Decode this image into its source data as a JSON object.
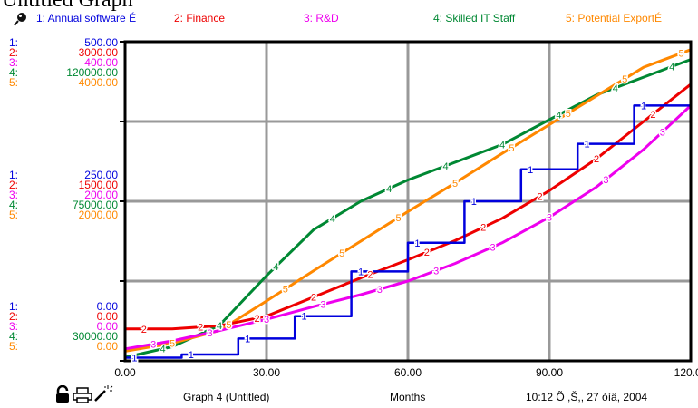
{
  "title_fragment": "Untitled Graph",
  "legend": [
    {
      "label": "1: Annual software É",
      "color": "#0000dd"
    },
    {
      "label": "2: Finance",
      "color": "#ee0000"
    },
    {
      "label": "3: R&D",
      "color": "#ee00ee"
    },
    {
      "label": "4: Skilled IT Staff",
      "color": "#008833"
    },
    {
      "label": "5: Potential ExportÉ",
      "color": "#ff8800"
    }
  ],
  "y_scale_top": [
    {
      "idx": "1:",
      "val": "500.00"
    },
    {
      "idx": "2:",
      "val": "3000.00"
    },
    {
      "idx": "3:",
      "val": "400.00"
    },
    {
      "idx": "4:",
      "val": "120000.00"
    },
    {
      "idx": "5:",
      "val": "4000.00"
    }
  ],
  "y_scale_mid": [
    {
      "idx": "1:",
      "val": "250.00"
    },
    {
      "idx": "2:",
      "val": "1500.00"
    },
    {
      "idx": "3:",
      "val": "200.00"
    },
    {
      "idx": "4:",
      "val": "75000.00"
    },
    {
      "idx": "5:",
      "val": "2000.00"
    }
  ],
  "y_scale_bot": [
    {
      "idx": "1:",
      "val": "0.00"
    },
    {
      "idx": "2:",
      "val": "0.00"
    },
    {
      "idx": "3:",
      "val": "0.00"
    },
    {
      "idx": "4:",
      "val": "30000.00"
    },
    {
      "idx": "5:",
      "val": "0.00"
    }
  ],
  "footer": {
    "graph_name": "Graph 4 (Untitled)",
    "x_label": "Months",
    "timestamp": "10:12 Õ  ,Š,, 27 óìä, 2004"
  },
  "icons": [
    "pin-icon",
    "lock-icon",
    "print-icon",
    "magic-wand-icon"
  ],
  "chart_data": {
    "type": "line",
    "x_label": "Months",
    "x_ticks": [
      "0.00",
      "30.00",
      "60.00",
      "90.00",
      "120.00"
    ],
    "xlim": [
      0,
      120
    ],
    "grid": true,
    "series": [
      {
        "name": "1: Annual software É",
        "color": "#0000dd",
        "step": true,
        "points": [
          [
            0,
            5
          ],
          [
            12,
            5
          ],
          [
            12,
            10
          ],
          [
            24,
            10
          ],
          [
            24,
            35
          ],
          [
            36,
            35
          ],
          [
            36,
            70
          ],
          [
            48,
            70
          ],
          [
            48,
            140
          ],
          [
            60,
            140
          ],
          [
            60,
            185
          ],
          [
            72,
            185
          ],
          [
            72,
            250
          ],
          [
            84,
            250
          ],
          [
            84,
            300
          ],
          [
            96,
            300
          ],
          [
            96,
            340
          ],
          [
            108,
            340
          ],
          [
            108,
            400
          ],
          [
            120,
            400
          ]
        ]
      },
      {
        "name": "2: Finance",
        "color": "#ee0000",
        "points": [
          [
            0,
            300
          ],
          [
            10,
            300
          ],
          [
            20,
            330
          ],
          [
            30,
            420
          ],
          [
            40,
            600
          ],
          [
            50,
            780
          ],
          [
            60,
            950
          ],
          [
            70,
            1130
          ],
          [
            80,
            1340
          ],
          [
            90,
            1600
          ],
          [
            100,
            1900
          ],
          [
            110,
            2250
          ],
          [
            120,
            2600
          ]
        ]
      },
      {
        "name": "3: R&D",
        "color": "#ee00ee",
        "points": [
          [
            0,
            15
          ],
          [
            10,
            25
          ],
          [
            20,
            38
          ],
          [
            30,
            52
          ],
          [
            40,
            68
          ],
          [
            50,
            83
          ],
          [
            60,
            100
          ],
          [
            70,
            122
          ],
          [
            80,
            148
          ],
          [
            90,
            180
          ],
          [
            100,
            218
          ],
          [
            110,
            265
          ],
          [
            120,
            320
          ]
        ]
      },
      {
        "name": "4: Skilled IT Staff",
        "color": "#008833",
        "points": [
          [
            0,
            31000
          ],
          [
            10,
            34000
          ],
          [
            20,
            40000
          ],
          [
            30,
            54000
          ],
          [
            40,
            67000
          ],
          [
            50,
            75000
          ],
          [
            60,
            81000
          ],
          [
            70,
            86000
          ],
          [
            80,
            91000
          ],
          [
            90,
            98000
          ],
          [
            100,
            105000
          ],
          [
            110,
            110000
          ],
          [
            120,
            115000
          ]
        ]
      },
      {
        "name": "5: Potential ExportÉ",
        "color": "#ff8800",
        "points": [
          [
            0,
            120
          ],
          [
            10,
            220
          ],
          [
            20,
            380
          ],
          [
            30,
            750
          ],
          [
            40,
            1130
          ],
          [
            50,
            1500
          ],
          [
            60,
            1870
          ],
          [
            70,
            2230
          ],
          [
            80,
            2600
          ],
          [
            90,
            2960
          ],
          [
            100,
            3320
          ],
          [
            110,
            3680
          ],
          [
            120,
            3900
          ]
        ]
      }
    ],
    "y_ranges": [
      [
        0,
        500
      ],
      [
        0,
        3000
      ],
      [
        0,
        400
      ],
      [
        30000,
        120000
      ],
      [
        0,
        4000
      ]
    ]
  }
}
